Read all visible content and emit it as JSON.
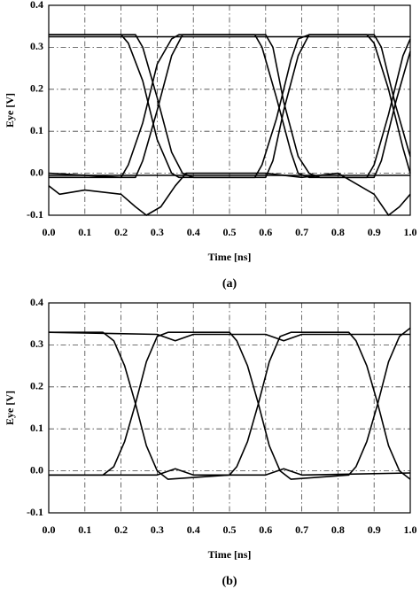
{
  "chart_data": [
    {
      "type": "line",
      "xlabel": "Time [ns]",
      "ylabel": "Eye [V]",
      "caption": "(a)",
      "xlim": [
        0,
        1
      ],
      "ylim": [
        -0.1,
        0.4
      ],
      "grid": true,
      "xticks": [
        {
          "value": 0,
          "label": "0.0"
        },
        0.1,
        0.2,
        0.3,
        0.4,
        0.5,
        0.6,
        0.7,
        0.8,
        0.9,
        {
          "value": 1,
          "label": "1.0"
        }
      ],
      "yticks": [
        -0.1,
        {
          "value": 0,
          "label": "0.0"
        },
        0.1,
        0.2,
        0.3,
        0.4
      ],
      "series": [
        {
          "color": "#000000",
          "x": [
            0,
            0.2,
            0.22,
            0.26,
            0.3,
            0.34,
            0.36,
            0.57,
            0.59,
            0.63,
            0.67,
            0.69,
            0.72,
            0.88,
            0.9,
            0.94,
            0.98,
            1.0
          ],
          "values": [
            0.33,
            0.33,
            0.31,
            0.22,
            0.08,
            0.0,
            -0.01,
            -0.01,
            0.02,
            0.13,
            0.27,
            0.32,
            0.33,
            0.33,
            0.31,
            0.2,
            0.06,
            0.0
          ]
        },
        {
          "color": "#000000",
          "x": [
            0,
            0.2,
            0.22,
            0.26,
            0.3,
            0.34,
            0.36,
            0.57,
            0.59,
            0.63,
            0.67,
            0.69,
            0.72,
            0.88,
            0.9,
            0.94,
            0.98,
            1.0
          ],
          "values": [
            0.0,
            -0.01,
            0.02,
            0.12,
            0.26,
            0.32,
            0.33,
            0.33,
            0.3,
            0.18,
            0.05,
            0.0,
            -0.01,
            -0.01,
            0.02,
            0.14,
            0.28,
            0.32
          ]
        },
        {
          "color": "#000000",
          "x": [
            0,
            0.24,
            0.26,
            0.3,
            0.34,
            0.37,
            0.4,
            0.6,
            0.62,
            0.65,
            0.69,
            0.72,
            0.75,
            0.9,
            0.92,
            0.96,
            1.0
          ],
          "values": [
            0.33,
            0.33,
            0.3,
            0.18,
            0.05,
            0.0,
            -0.01,
            -0.01,
            0.03,
            0.15,
            0.28,
            0.33,
            0.33,
            0.33,
            0.3,
            0.16,
            0.04
          ]
        },
        {
          "color": "#000000",
          "x": [
            0,
            0.24,
            0.26,
            0.3,
            0.34,
            0.37,
            0.4,
            0.6,
            0.62,
            0.65,
            0.69,
            0.72,
            0.75,
            0.9,
            0.92,
            0.96,
            1.0
          ],
          "values": [
            -0.01,
            -0.01,
            0.03,
            0.15,
            0.28,
            0.33,
            0.33,
            0.33,
            0.3,
            0.17,
            0.04,
            0.0,
            -0.01,
            -0.01,
            0.03,
            0.17,
            0.29
          ]
        },
        {
          "color": "#000000",
          "x": [
            0,
            1.0
          ],
          "values": [
            0.325,
            0.325
          ]
        },
        {
          "color": "#000000",
          "x": [
            0,
            1.0
          ],
          "values": [
            -0.005,
            -0.005
          ]
        },
        {
          "color": "#000000",
          "x": [
            0,
            0.03,
            0.1,
            0.2,
            0.24,
            0.27,
            0.31,
            0.35,
            0.38,
            0.5,
            0.6,
            0.7,
            0.8,
            0.9,
            0.94,
            0.97,
            1.0
          ],
          "values": [
            -0.03,
            -0.05,
            -0.04,
            -0.05,
            -0.08,
            -0.1,
            -0.08,
            -0.03,
            0.0,
            0.0,
            0.0,
            -0.01,
            0.0,
            -0.05,
            -0.1,
            -0.08,
            -0.05
          ]
        }
      ]
    },
    {
      "type": "line",
      "xlabel": "Time [ns]",
      "ylabel": "Eye [V]",
      "caption": "(b)",
      "xlim": [
        0,
        1
      ],
      "ylim": [
        -0.1,
        0.4
      ],
      "grid": true,
      "xticks": [
        {
          "value": 0,
          "label": "0.0"
        },
        0.1,
        0.2,
        0.3,
        0.4,
        0.5,
        0.6,
        0.7,
        0.8,
        0.9,
        {
          "value": 1,
          "label": "1.0"
        }
      ],
      "yticks": [
        -0.1,
        {
          "value": 0,
          "label": "0.0"
        },
        0.1,
        0.2,
        0.3,
        0.4
      ],
      "series": [
        {
          "color": "#000000",
          "x": [
            0,
            0.15,
            0.18,
            0.21,
            0.24,
            0.27,
            0.3,
            0.33,
            0.5,
            0.52,
            0.55,
            0.58,
            0.61,
            0.64,
            0.67,
            0.83,
            0.85,
            0.88,
            0.91,
            0.94,
            0.97,
            1.0
          ],
          "values": [
            0.33,
            0.33,
            0.31,
            0.25,
            0.16,
            0.06,
            0.0,
            -0.02,
            -0.01,
            0.01,
            0.07,
            0.16,
            0.26,
            0.32,
            0.33,
            0.33,
            0.31,
            0.25,
            0.16,
            0.06,
            0.0,
            -0.02
          ]
        },
        {
          "color": "#000000",
          "x": [
            0,
            0.15,
            0.18,
            0.21,
            0.24,
            0.27,
            0.3,
            0.33,
            0.5,
            0.52,
            0.55,
            0.58,
            0.61,
            0.64,
            0.67,
            0.83,
            0.85,
            0.88,
            0.91,
            0.94,
            0.97,
            1.0
          ],
          "values": [
            -0.01,
            -0.01,
            0.01,
            0.07,
            0.16,
            0.26,
            0.32,
            0.33,
            0.33,
            0.31,
            0.25,
            0.16,
            0.06,
            0.0,
            -0.02,
            -0.01,
            0.01,
            0.07,
            0.16,
            0.26,
            0.32,
            0.34
          ]
        },
        {
          "color": "#000000",
          "x": [
            0,
            0.3,
            0.35,
            0.4,
            0.6,
            0.65,
            0.7,
            1.0
          ],
          "values": [
            0.33,
            0.325,
            0.31,
            0.325,
            0.325,
            0.31,
            0.325,
            0.325
          ]
        },
        {
          "color": "#000000",
          "x": [
            0,
            0.3,
            0.35,
            0.4,
            0.6,
            0.65,
            0.7,
            1.0
          ],
          "values": [
            -0.01,
            -0.01,
            0.005,
            -0.01,
            -0.01,
            0.005,
            -0.01,
            -0.005
          ]
        }
      ]
    }
  ]
}
